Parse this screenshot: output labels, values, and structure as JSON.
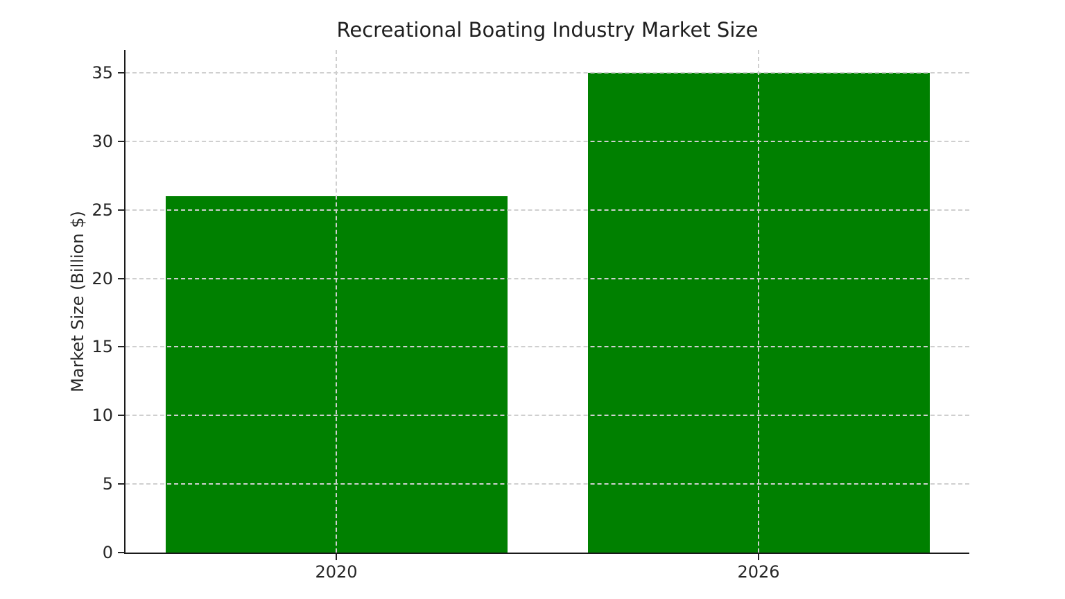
{
  "chart_data": {
    "type": "bar",
    "title": "Recreational Boating Industry Market Size",
    "categories": [
      "2020",
      "2026"
    ],
    "values": [
      26,
      35
    ],
    "xlabel": "",
    "ylabel": "Market Size (Billion $)",
    "yticks": [
      0,
      5,
      10,
      15,
      20,
      25,
      30,
      35
    ],
    "ylim": [
      0,
      36.7
    ],
    "bar_color": "#008000",
    "background_color": "#ffffff",
    "text_color": "#262626",
    "grid_color": "#cfcfcf",
    "grid": "dashed, horizontal and vertical, drawn over bars",
    "legend_position": "none"
  }
}
